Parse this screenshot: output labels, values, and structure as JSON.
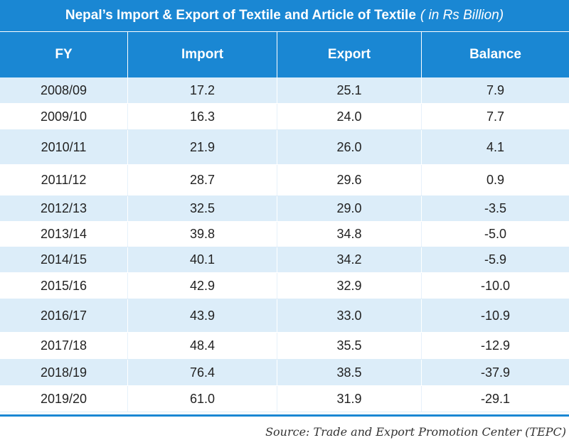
{
  "title": "Nepal’s Import & Export of Textile and Article of Textile",
  "title_unit": "( in Rs Billion)",
  "colors": {
    "header_bg": "#1a87d3",
    "stripe": "#dcedf9",
    "text": "#222222"
  },
  "chart_data": {
    "type": "table",
    "title": "Nepal’s Import & Export of Textile and Article of Textile",
    "unit": "( in Rs Billion)",
    "columns": [
      "FY",
      "Import",
      "Export",
      "Balance"
    ],
    "rows": [
      [
        "2008/09",
        "17.2",
        "25.1",
        "7.9"
      ],
      [
        "2009/10",
        "16.3",
        "24.0",
        "7.7"
      ],
      [
        "2010/11",
        "21.9",
        "26.0",
        "4.1"
      ],
      [
        "2011/12",
        "28.7",
        "29.6",
        "0.9"
      ],
      [
        "2012/13",
        "32.5",
        "29.0",
        "-3.5"
      ],
      [
        "2013/14",
        "39.8",
        "34.8",
        "-5.0"
      ],
      [
        "2014/15",
        "40.1",
        "34.2",
        "-5.9"
      ],
      [
        "2015/16",
        "42.9",
        "32.9",
        "-10.0"
      ],
      [
        "2016/17",
        "43.9",
        "33.0",
        "-10.9"
      ],
      [
        "2017/18",
        "48.4",
        "35.5",
        "-12.9"
      ],
      [
        "2018/19",
        "76.4",
        "38.5",
        "-37.9"
      ],
      [
        "2019/20",
        "61.0",
        "31.9",
        "-29.1"
      ]
    ]
  },
  "source": "Source: Trade and Export Promotion Center (TEPC)"
}
